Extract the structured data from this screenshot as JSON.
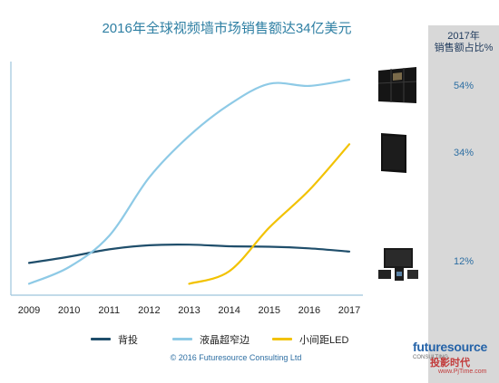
{
  "chart_data": {
    "type": "line",
    "title": "2016年全球视频墙市场销售额达34亿美元",
    "x": [
      2009,
      2010,
      2011,
      2012,
      2013,
      2014,
      2015,
      2016,
      2017
    ],
    "ylim": [
      0,
      100
    ],
    "grid": false,
    "legend_placement": "bottom",
    "series": [
      {
        "name": "背投",
        "color": "#1f4e6b",
        "x": [
          2009,
          2010,
          2011,
          2012,
          2013,
          2014,
          2015,
          2016,
          2017
        ],
        "values": [
          12,
          15,
          18.5,
          20.5,
          20.8,
          20,
          19.8,
          19,
          17.5
        ]
      },
      {
        "name": "液晶超窄边",
        "color": "#8ecae6",
        "x": [
          2009,
          2010,
          2011,
          2012,
          2013,
          2014,
          2015,
          2016,
          2017
        ],
        "values": [
          2,
          10,
          25,
          53,
          73,
          88,
          98,
          97,
          100
        ]
      },
      {
        "name": "小间距LED",
        "color": "#f2c200",
        "x": [
          2013,
          2014,
          2015,
          2016,
          2017
        ],
        "values": [
          2,
          8,
          29,
          47,
          69
        ]
      }
    ],
    "side_panel": {
      "title_line1": "2017年",
      "title_line2": "销售额占比%",
      "shares": [
        "54%",
        "34%",
        "12%"
      ]
    }
  },
  "footer": {
    "copyright": "© 2016 Futuresource  Consulting Ltd",
    "brand": "futuresource",
    "brand_sub": "CONSULTING",
    "watermark": "投影时代",
    "watermark_url": "www.PjTime.com"
  }
}
